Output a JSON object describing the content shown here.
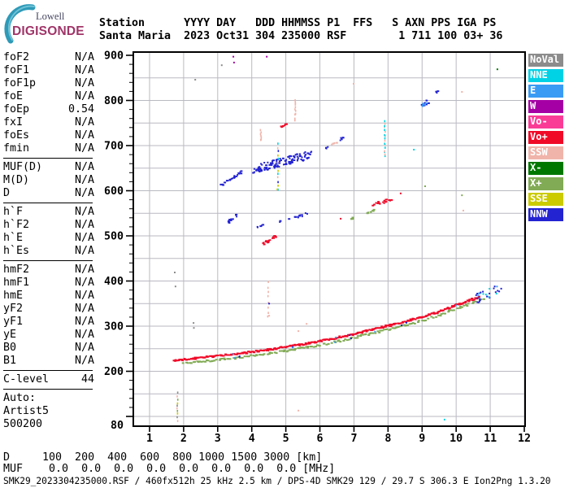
{
  "logo": {
    "line1": "Lowell",
    "line2": "DIGISONDE"
  },
  "header": {
    "line1": "Station      YYYY DAY   DDD HHMMSS P1  FFS   S AXN PPS IGA PS",
    "line2": "Santa Maria  2023 Oct31 304 235000 RSF        1 711 100 03+ 36"
  },
  "params": {
    "sections": [
      [
        [
          "foF2",
          "N/A"
        ],
        [
          "foF1",
          "N/A"
        ],
        [
          "foF1p",
          "N/A"
        ],
        [
          "foE",
          "N/A"
        ],
        [
          "foEp",
          "0.54"
        ],
        [
          "fxI",
          "N/A"
        ],
        [
          "foEs",
          "N/A"
        ],
        [
          "fmin",
          "N/A"
        ]
      ],
      [
        [
          "MUF(D)",
          "N/A"
        ],
        [
          "M(D)",
          "N/A"
        ],
        [
          "D",
          "N/A"
        ]
      ],
      [
        [
          "h`F",
          "N/A"
        ],
        [
          "h`F2",
          "N/A"
        ],
        [
          "h`E",
          "N/A"
        ],
        [
          "h`Es",
          "N/A"
        ]
      ],
      [
        [
          "hmF2",
          "N/A"
        ],
        [
          "hmF1",
          "N/A"
        ],
        [
          "hmE",
          "N/A"
        ],
        [
          "yF2",
          "N/A"
        ],
        [
          "yF1",
          "N/A"
        ],
        [
          "yE",
          "N/A"
        ],
        [
          "B0",
          "N/A"
        ],
        [
          "B1",
          "N/A"
        ]
      ],
      [
        [
          "C-level",
          "44"
        ]
      ]
    ],
    "footer_lines": [
      "Auto:",
      "Artist5",
      "500200"
    ]
  },
  "legend": [
    {
      "label": "NoVal",
      "color": "#8C8C8C"
    },
    {
      "label": "NNE",
      "color": "#00D2E6"
    },
    {
      "label": "E",
      "color": "#3A9BF5"
    },
    {
      "label": "W",
      "color": "#A500A5"
    },
    {
      "label": "Vo-",
      "color": "#FA3C96"
    },
    {
      "label": "Vo+",
      "color": "#F00A28"
    },
    {
      "label": "SSW",
      "color": "#F0B4AA"
    },
    {
      "label": "X-",
      "color": "#007800"
    },
    {
      "label": "X+",
      "color": "#82AB55"
    },
    {
      "label": "SSE",
      "color": "#CBCB00"
    },
    {
      "label": "NNW",
      "color": "#2323D2"
    }
  ],
  "footer": {
    "d_line": "D     100  200  400  600  800 1000 1500 3000 [km]",
    "muf_line": "MUF    0.0  0.0  0.0  0.0  0.0  0.0  0.0  0.0 [MHz]",
    "file_line": "SMK29_2023304235000.RSF / 460fx512h 25 kHz 2.5 km / DPS-4D SMK29 129 / 29.7 S 306.3 E Ion2Png 1.3.20"
  },
  "chart_data": {
    "type": "scatter",
    "title": "Digisonde ionogram, Santa Maria 2023 Oct31 304 235000",
    "x_axis": {
      "unit": "MHz",
      "min": 0.5,
      "max": 12.05,
      "ticks": [
        1,
        2,
        3,
        4,
        5,
        6,
        7,
        8,
        9,
        10,
        11,
        12
      ],
      "grid": true
    },
    "y_axis": {
      "unit": "km",
      "min": 80,
      "max": 900,
      "tick_labels": [
        900,
        800,
        700,
        600,
        500,
        400,
        300,
        200
      ],
      "bottom_label": "80",
      "grid_step_km": 50,
      "minor_tick_km": 20
    },
    "legend_position": "right",
    "main_trace": {
      "description": "F-layer echo trace, O/X polarization (red Vo+ over green X+, blue tip)",
      "anchors": [
        [
          1.7,
          222
        ],
        [
          2.5,
          228
        ],
        [
          3.5,
          236
        ],
        [
          4.5,
          246
        ],
        [
          5.5,
          258
        ],
        [
          6.5,
          272
        ],
        [
          7.5,
          290
        ],
        [
          8.5,
          308
        ],
        [
          9.5,
          330
        ],
        [
          10.2,
          350
        ],
        [
          10.8,
          366
        ],
        [
          11.3,
          386
        ]
      ],
      "red_range": [
        1.7,
        10.68
      ],
      "green_range": [
        1.95,
        10.8
      ],
      "tip_range": [
        10.55,
        11.35
      ]
    },
    "clusters": [
      {
        "color": "NNW",
        "f": [
          4.05,
          5.75
        ],
        "alt": [
          648,
          680
        ],
        "spread": 9,
        "n": 120
      },
      {
        "color": "NNW",
        "f": [
          3.1,
          3.7
        ],
        "alt": [
          612,
          641
        ],
        "spread": 3,
        "n": 20
      },
      {
        "color": "NNW",
        "f": [
          3.31,
          3.58
        ],
        "alt": [
          531,
          547
        ],
        "spread": 3,
        "n": 13
      },
      {
        "color": "NNW",
        "f": [
          4.6,
          5.68
        ],
        "alt": [
          527,
          550
        ],
        "spread": 2.5,
        "n": 15
      },
      {
        "color": "NNW",
        "f": [
          4.15,
          4.3
        ],
        "alt": [
          519,
          524
        ],
        "spread": 2,
        "n": 5
      },
      {
        "color": "NNW",
        "f": [
          6.58,
          6.7
        ],
        "alt": [
          711,
          719
        ],
        "spread": 2,
        "n": 6
      },
      {
        "color": "NNW",
        "f": [
          6.2,
          6.28
        ],
        "alt": [
          695,
          699
        ],
        "spread": 2,
        "n": 4
      },
      {
        "color": "NNW",
        "f": [
          9.33,
          9.46
        ],
        "alt": [
          814,
          819
        ],
        "spread": 2,
        "n": 4
      },
      {
        "color": "NNW",
        "f": [
          8.97,
          9.26
        ],
        "alt": [
          786,
          803
        ],
        "spread": 4,
        "n": 9
      },
      {
        "color": "E",
        "f": [
          9.0,
          9.2
        ],
        "alt": [
          788,
          798
        ],
        "spread": 3,
        "n": 6
      },
      {
        "color": "Vo+",
        "f": [
          4.32,
          4.72
        ],
        "alt": [
          482,
          500
        ],
        "spread": 4,
        "n": 24
      },
      {
        "color": "Vo+",
        "f": [
          7.52,
          8.11
        ],
        "alt": [
          567,
          581
        ],
        "spread": 3.5,
        "n": 20
      },
      {
        "color": "Vo+",
        "f": [
          4.84,
          5.03
        ],
        "alt": [
          740,
          748
        ],
        "spread": 2,
        "n": 8
      },
      {
        "color": "X+",
        "f": [
          7.4,
          7.59
        ],
        "alt": [
          550,
          558
        ],
        "spread": 2,
        "n": 7
      },
      {
        "color": "X+",
        "f": [
          6.92,
          7.0
        ],
        "alt": [
          536,
          541
        ],
        "spread": 1.5,
        "n": 5
      },
      {
        "color": "SSW",
        "f": [
          6.32,
          6.47
        ],
        "alt": [
          702,
          707
        ],
        "spread": 1.5,
        "n": 4
      }
    ],
    "verticals": [
      {
        "colors": [
          "SSW"
        ],
        "f": 5.27,
        "alt": [
          758,
          803
        ],
        "n": 11
      },
      {
        "colors": [
          "SSW"
        ],
        "f": 4.26,
        "alt": [
          712,
          736
        ],
        "n": 7
      },
      {
        "colors": [
          "NNE",
          "SSW"
        ],
        "f": 7.9,
        "alt": [
          675,
          756
        ],
        "n": 17
      },
      {
        "colors": [
          "NNE",
          "SSE",
          "NNW",
          "SSW"
        ],
        "f": 4.76,
        "alt": [
          603,
          704
        ],
        "n": 13
      },
      {
        "colors": [
          "SSW",
          "NoVal",
          "SSE",
          "X+"
        ],
        "f": 1.81,
        "alt": [
          91,
          152
        ],
        "n": 10
      },
      {
        "colors": [
          "SSW"
        ],
        "f": 4.47,
        "alt": [
          320,
          398
        ],
        "n": 8
      }
    ],
    "dots": [
      [
        11.21,
        869,
        "X-"
      ],
      [
        8.37,
        594,
        "Vo+"
      ],
      [
        6.61,
        538,
        "Vo+"
      ],
      [
        9.09,
        610,
        "X+"
      ],
      [
        10.17,
        590,
        "X+"
      ],
      [
        10.17,
        819,
        "SSW"
      ],
      [
        6.99,
        837,
        "SSW"
      ],
      [
        10.21,
        556,
        "SSW"
      ],
      [
        5.37,
        289,
        "SSW"
      ],
      [
        5.61,
        305,
        "SSW"
      ],
      [
        5.37,
        113,
        "SSW"
      ],
      [
        4.51,
        323,
        "SSW"
      ],
      [
        2.34,
        846,
        "NoVal"
      ],
      [
        3.12,
        878,
        "NoVal"
      ],
      [
        1.74,
        419,
        "NoVal"
      ],
      [
        1.76,
        388,
        "NoVal"
      ],
      [
        2.29,
        307,
        "NoVal"
      ],
      [
        2.3,
        296,
        "NoVal"
      ],
      [
        3.46,
        897,
        "W"
      ],
      [
        3.48,
        884,
        "W"
      ],
      [
        4.44,
        897,
        "W"
      ],
      [
        8.76,
        691,
        "NNE"
      ],
      [
        9.66,
        93,
        "NNE"
      ],
      [
        4.51,
        350,
        "NNW"
      ],
      [
        4.75,
        603,
        "SSE"
      ]
    ]
  }
}
